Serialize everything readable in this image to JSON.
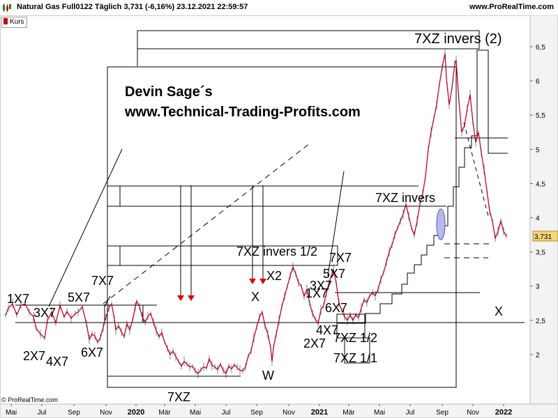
{
  "header": {
    "title": "Natural Gas Full0122 Täglich 3,731 (-6,16%) 23.12.2021 22:59:57",
    "site": "www.ProRealTime.com"
  },
  "legend": {
    "label": "Kurs",
    "color": "#cc0000"
  },
  "copyright": "© ProRealTime.com",
  "chart_data": {
    "type": "line",
    "title": "Natural Gas Full0122 Täglich",
    "price_color": "#cc0022",
    "yaxis": {
      "ticks": [
        {
          "v": 6.5,
          "label": "6,5"
        },
        {
          "v": 6,
          "label": "6"
        },
        {
          "v": 5.5,
          "label": "5,5"
        },
        {
          "v": 5,
          "label": "5"
        },
        {
          "v": 4.5,
          "label": "4,5"
        },
        {
          "v": 4,
          "label": "4"
        },
        {
          "v": 3.5,
          "label": "3,5"
        },
        {
          "v": 3,
          "label": "3"
        },
        {
          "v": 2.5,
          "label": "2,5"
        },
        {
          "v": 2,
          "label": "2"
        }
      ],
      "last_value": "3,731"
    },
    "xaxis": {
      "ticks": [
        "Mai",
        "Jul",
        "Sep",
        "Nov",
        "2020",
        "Mär",
        "Mai",
        "Jul",
        "Sep",
        "Nov",
        "2021",
        "Mär",
        "Mai",
        "Jul",
        "Sep",
        "Nov",
        "2022"
      ],
      "bold": [
        "2020",
        "2021",
        "2022"
      ]
    },
    "price_points": [
      [
        0,
        2.57
      ],
      [
        2,
        2.68
      ],
      [
        5,
        2.74
      ],
      [
        8,
        2.58
      ],
      [
        11,
        2.72
      ],
      [
        14,
        2.74
      ],
      [
        17,
        2.62
      ],
      [
        20,
        2.55
      ],
      [
        22,
        2.38
      ],
      [
        25,
        2.3
      ],
      [
        28,
        2.24
      ],
      [
        30,
        2.5
      ],
      [
        33,
        2.62
      ],
      [
        36,
        2.46
      ],
      [
        39,
        2.72
      ],
      [
        42,
        2.55
      ],
      [
        44,
        2.63
      ],
      [
        47,
        2.53
      ],
      [
        50,
        2.6
      ],
      [
        52,
        2.62
      ],
      [
        55,
        2.7
      ],
      [
        58,
        2.45
      ],
      [
        60,
        2.22
      ],
      [
        62,
        2.3
      ],
      [
        64,
        2.27
      ],
      [
        66,
        2.18
      ],
      [
        68,
        2.25
      ],
      [
        70,
        2.4
      ],
      [
        72,
        2.55
      ],
      [
        74,
        2.68
      ],
      [
        76,
        2.74
      ],
      [
        78,
        2.52
      ],
      [
        79,
        2.36
      ],
      [
        81,
        2.42
      ],
      [
        83,
        2.33
      ],
      [
        85,
        2.26
      ],
      [
        87,
        2.45
      ],
      [
        89,
        2.36
      ],
      [
        91,
        2.5
      ],
      [
        93,
        2.7
      ],
      [
        94,
        2.78
      ],
      [
        96,
        2.7
      ],
      [
        98,
        2.55
      ],
      [
        100,
        2.47
      ],
      [
        102,
        2.56
      ],
      [
        104,
        2.6
      ],
      [
        106,
        2.47
      ],
      [
        108,
        2.35
      ],
      [
        110,
        2.26
      ],
      [
        112,
        2.32
      ],
      [
        114,
        2.18
      ],
      [
        116,
        2.09
      ],
      [
        118,
        2.0
      ],
      [
        120,
        2.05
      ],
      [
        122,
        1.97
      ],
      [
        124,
        1.9
      ],
      [
        126,
        1.83
      ],
      [
        128,
        1.9
      ],
      [
        130,
        1.86
      ],
      [
        132,
        1.82
      ],
      [
        134,
        1.83
      ],
      [
        136,
        1.76
      ],
      [
        138,
        1.72
      ],
      [
        140,
        1.78
      ],
      [
        142,
        1.82
      ],
      [
        144,
        1.8
      ],
      [
        146,
        1.94
      ],
      [
        148,
        1.84
      ],
      [
        150,
        1.82
      ],
      [
        152,
        1.78
      ],
      [
        154,
        1.86
      ],
      [
        156,
        1.77
      ],
      [
        158,
        1.72
      ],
      [
        160,
        1.83
      ],
      [
        162,
        1.79
      ],
      [
        164,
        1.85
      ],
      [
        166,
        1.81
      ],
      [
        168,
        1.77
      ],
      [
        170,
        1.76
      ],
      [
        172,
        1.82
      ],
      [
        174,
        1.98
      ],
      [
        176,
        2.05
      ],
      [
        178,
        2.25
      ],
      [
        180,
        2.4
      ],
      [
        182,
        2.55
      ],
      [
        184,
        2.62
      ],
      [
        186,
        2.42
      ],
      [
        188,
        2.3
      ],
      [
        190,
        2.1
      ],
      [
        191,
        1.9
      ],
      [
        192,
        2.1
      ],
      [
        194,
        2.3
      ],
      [
        196,
        2.5
      ],
      [
        198,
        2.7
      ],
      [
        200,
        2.85
      ],
      [
        202,
        3.0
      ],
      [
        204,
        3.15
      ],
      [
        206,
        3.28
      ],
      [
        208,
        3.18
      ],
      [
        210,
        3.05
      ],
      [
        212,
        3.0
      ],
      [
        214,
        2.85
      ],
      [
        216,
        2.95
      ],
      [
        218,
        2.75
      ],
      [
        220,
        2.6
      ],
      [
        222,
        2.52
      ],
      [
        224,
        2.45
      ],
      [
        226,
        2.65
      ],
      [
        228,
        2.72
      ],
      [
        230,
        2.9
      ],
      [
        232,
        3.06
      ],
      [
        234,
        3.18
      ],
      [
        235,
        3.25
      ],
      [
        237,
        3.05
      ],
      [
        239,
        2.75
      ],
      [
        241,
        2.65
      ],
      [
        243,
        2.55
      ],
      [
        245,
        2.5
      ],
      [
        247,
        2.58
      ],
      [
        249,
        2.5
      ],
      [
        251,
        2.58
      ],
      [
        253,
        2.54
      ],
      [
        255,
        2.68
      ],
      [
        257,
        2.8
      ],
      [
        259,
        2.76
      ],
      [
        261,
        2.86
      ],
      [
        263,
        2.9
      ],
      [
        265,
        2.86
      ],
      [
        267,
        2.95
      ],
      [
        269,
        3.1
      ],
      [
        271,
        3.2
      ],
      [
        273,
        3.35
      ],
      [
        275,
        3.5
      ],
      [
        277,
        3.6
      ],
      [
        279,
        3.75
      ],
      [
        281,
        3.85
      ],
      [
        283,
        3.95
      ],
      [
        285,
        4.05
      ],
      [
        287,
        4.2
      ],
      [
        289,
        4.02
      ],
      [
        291,
        3.85
      ],
      [
        293,
        3.75
      ],
      [
        295,
        3.95
      ],
      [
        297,
        4.2
      ],
      [
        299,
        4.35
      ],
      [
        301,
        4.6
      ],
      [
        303,
        5.0
      ],
      [
        305,
        5.25
      ],
      [
        307,
        5.45
      ],
      [
        309,
        5.65
      ],
      [
        311,
        5.95
      ],
      [
        313,
        6.2
      ],
      [
        315,
        6.4
      ],
      [
        316,
        6.05
      ],
      [
        318,
        5.65
      ],
      [
        320,
        5.9
      ],
      [
        322,
        6.25
      ],
      [
        323,
        6.3
      ],
      [
        325,
        5.7
      ],
      [
        327,
        5.25
      ],
      [
        329,
        5.35
      ],
      [
        331,
        5.6
      ],
      [
        333,
        5.8
      ],
      [
        335,
        5.4
      ],
      [
        337,
        5.1
      ],
      [
        339,
        5.25
      ],
      [
        341,
        4.95
      ],
      [
        343,
        4.7
      ],
      [
        345,
        4.4
      ],
      [
        347,
        4.1
      ],
      [
        349,
        3.95
      ],
      [
        351,
        3.7
      ],
      [
        353,
        3.8
      ],
      [
        355,
        3.95
      ],
      [
        357,
        3.8
      ],
      [
        359,
        3.73
      ]
    ],
    "levels": [
      {
        "value": 6.75,
        "label": "7XZ invers (2)"
      },
      {
        "value": 4.21,
        "label": "7XZ invers"
      },
      {
        "value": 3.58,
        "label": "7XZ invers 1/2"
      },
      {
        "value": 2.47,
        "label": "X"
      },
      {
        "value": 1.75,
        "label": "7XZ"
      }
    ],
    "annotations": [
      "1X7",
      "3X7",
      "5X7",
      "7X7",
      "2X7",
      "4X7",
      "6X7",
      "7XZ",
      "7XZ invers 1/2",
      "X2",
      "X",
      "W",
      "7X7",
      "5X7",
      "3X7",
      "1X7",
      "6X7",
      "4X7",
      "2X7",
      "7XZ 1/2",
      "7XZ 1/1",
      "7XZ invers",
      "7XZ invers (2)",
      "X"
    ],
    "watermark": [
      "Devin Sage´s",
      "www.Technical-Trading-Profits.com"
    ]
  }
}
